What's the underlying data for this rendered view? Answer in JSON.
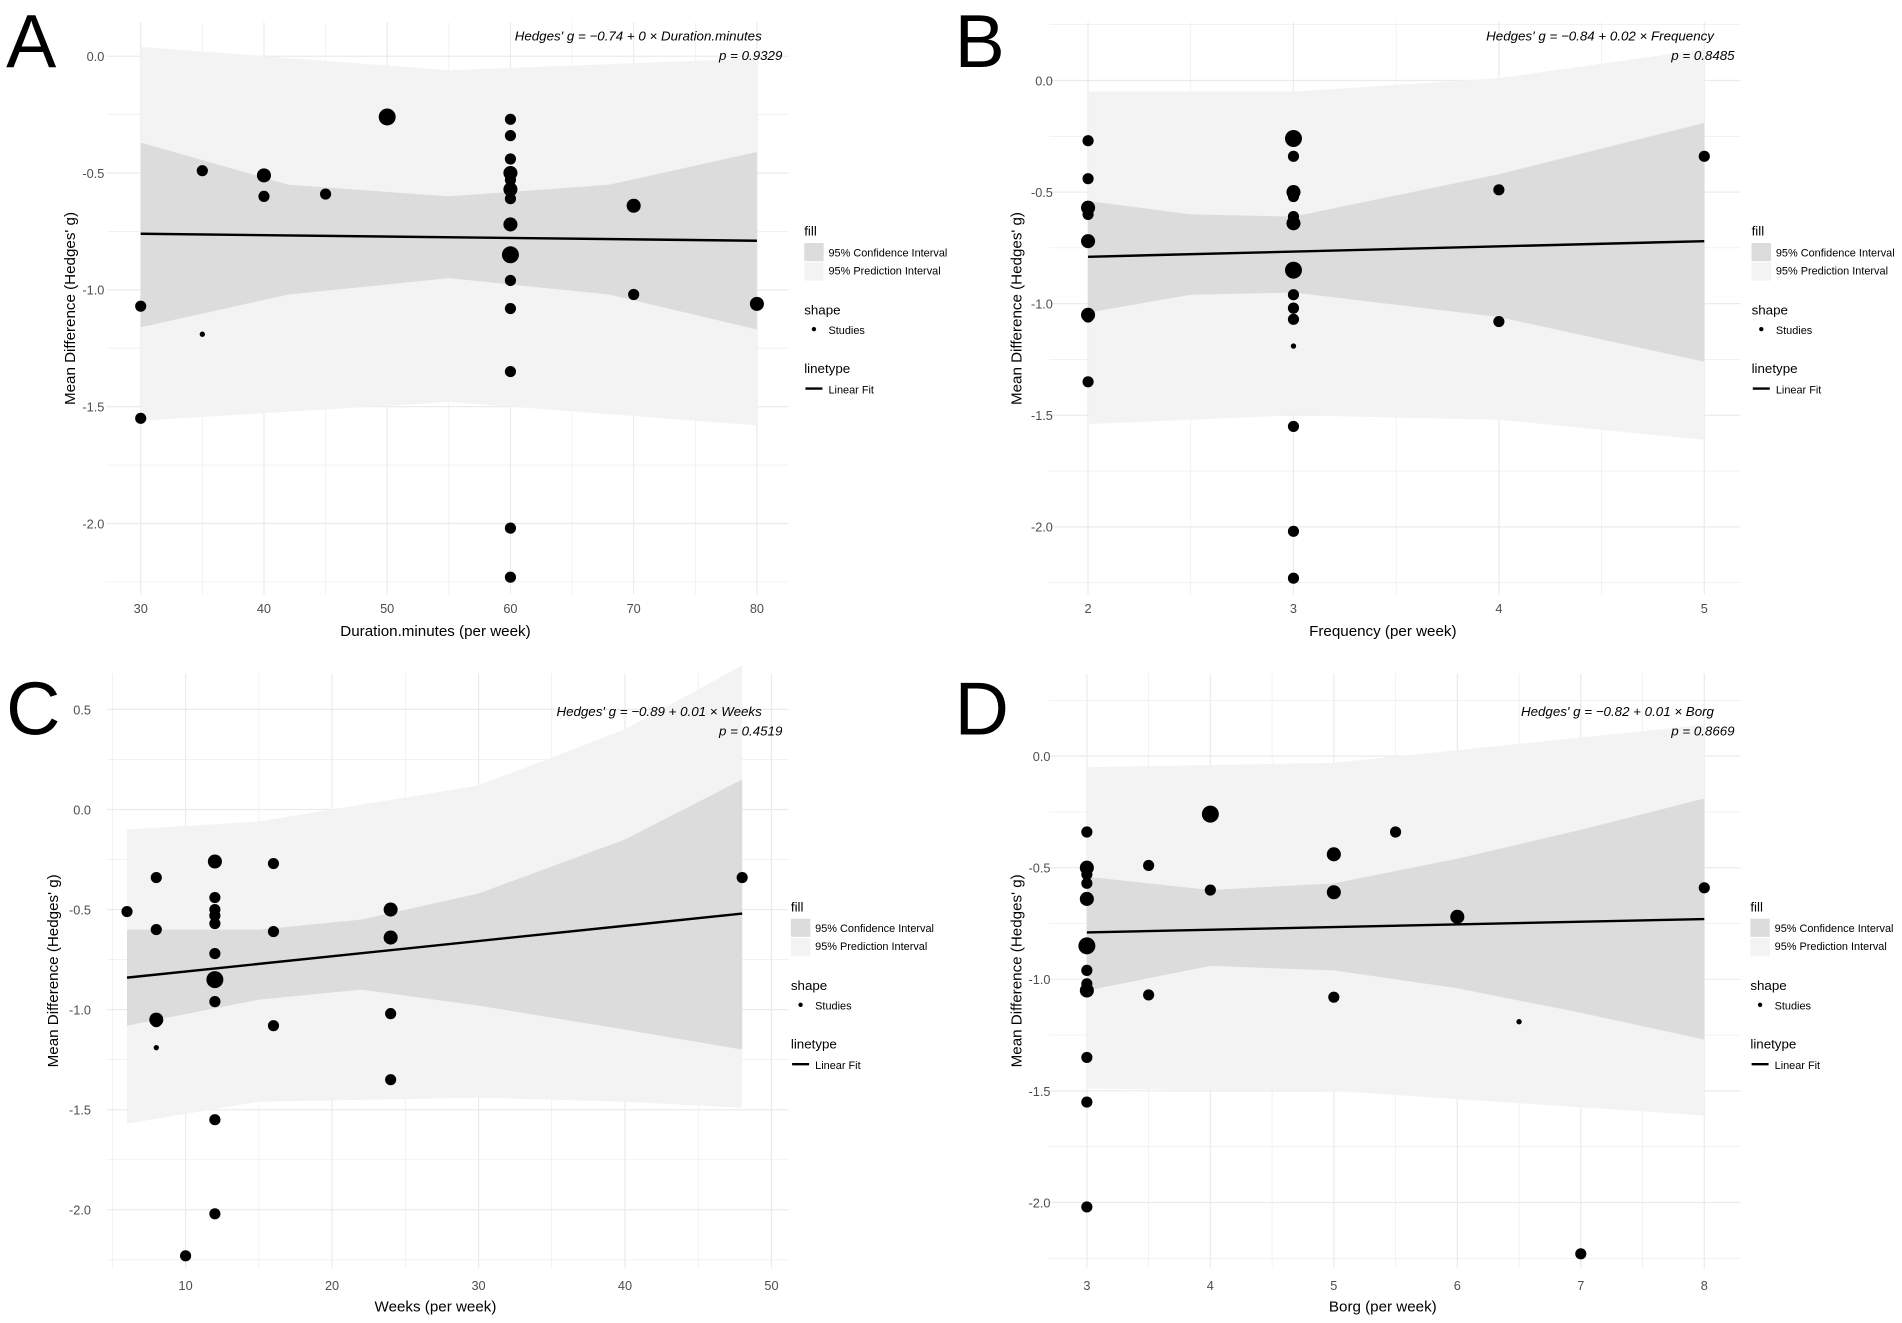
{
  "chart_data": [
    {
      "panel": "A",
      "type": "scatter",
      "equation": "Hedges' g = −0.74 + 0 × Duration.minutes",
      "p_value": "p = 0.9329",
      "xlabel": "Duration.minutes (per week)",
      "ylabel": "Mean Difference (Hedges' g)",
      "xticks": [
        30,
        40,
        50,
        60,
        70,
        80
      ],
      "yticks": [
        0.0,
        -0.5,
        -1.0,
        -1.5,
        -2.0
      ],
      "xtick_labels": [
        "30",
        "40",
        "50",
        "60",
        "70",
        "80"
      ],
      "ytick_labels": [
        "0.0",
        "-0.5",
        "-1.0",
        "-1.5",
        "-2.0"
      ],
      "fit": {
        "x": [
          30,
          80
        ],
        "y": [
          -0.76,
          -0.79
        ]
      },
      "ci": {
        "x": [
          30,
          42,
          55,
          68,
          80
        ],
        "upper": [
          -0.37,
          -0.55,
          -0.6,
          -0.55,
          -0.41
        ],
        "lower": [
          -1.16,
          -1.02,
          -0.95,
          -1.02,
          -1.17
        ]
      },
      "pi": {
        "x": [
          30,
          55,
          80
        ],
        "upper": [
          0.04,
          -0.06,
          -0.01
        ],
        "lower": [
          -1.56,
          -1.48,
          -1.58
        ]
      },
      "points": [
        [
          30,
          -1.07,
          2
        ],
        [
          30,
          -1.55,
          2
        ],
        [
          35,
          -0.49,
          2
        ],
        [
          35,
          -1.19,
          1
        ],
        [
          40,
          -0.51,
          3
        ],
        [
          40,
          -0.6,
          2
        ],
        [
          45,
          -0.59,
          2
        ],
        [
          50,
          -0.26,
          4
        ],
        [
          60,
          -0.27,
          2
        ],
        [
          60,
          -0.34,
          2
        ],
        [
          60,
          -0.44,
          2
        ],
        [
          60,
          -0.5,
          3
        ],
        [
          60,
          -0.53,
          2
        ],
        [
          60,
          -0.57,
          3
        ],
        [
          60,
          -0.61,
          2
        ],
        [
          60,
          -0.72,
          3
        ],
        [
          60,
          -0.85,
          4
        ],
        [
          60,
          -0.96,
          2
        ],
        [
          60,
          -1.08,
          2
        ],
        [
          60,
          -1.35,
          2
        ],
        [
          60,
          -2.02,
          2
        ],
        [
          60,
          -2.23,
          2
        ],
        [
          70,
          -0.64,
          3
        ],
        [
          70,
          -1.02,
          2
        ],
        [
          80,
          -1.06,
          3
        ]
      ]
    },
    {
      "panel": "B",
      "type": "scatter",
      "equation": "Hedges' g = −0.84 + 0.02 × Frequency",
      "p_value": "p = 0.8485",
      "xlabel": "Frequency (per week)",
      "ylabel": "Mean Difference (Hedges' g)",
      "xticks": [
        2,
        3,
        4,
        5
      ],
      "yticks": [
        0.0,
        -0.5,
        -1.0,
        -1.5,
        -2.0
      ],
      "xtick_labels": [
        "2",
        "3",
        "4",
        "5"
      ],
      "ytick_labels": [
        "0.0",
        "-0.5",
        "-1.0",
        "-1.5",
        "-2.0"
      ],
      "fit": {
        "x": [
          2,
          5
        ],
        "y": [
          -0.79,
          -0.72
        ]
      },
      "ci": {
        "x": [
          2,
          2.5,
          3,
          4,
          5
        ],
        "upper": [
          -0.54,
          -0.6,
          -0.61,
          -0.42,
          -0.19
        ],
        "lower": [
          -1.04,
          -0.96,
          -0.95,
          -1.06,
          -1.26
        ]
      },
      "pi": {
        "x": [
          2,
          3,
          4,
          5
        ],
        "upper": [
          -0.05,
          -0.05,
          0.01,
          0.14
        ],
        "lower": [
          -1.54,
          -1.5,
          -1.52,
          -1.61
        ]
      },
      "points": [
        [
          2,
          -0.27,
          2
        ],
        [
          2,
          -0.44,
          2
        ],
        [
          2,
          -0.57,
          3
        ],
        [
          2,
          -0.6,
          2
        ],
        [
          2,
          -0.72,
          3
        ],
        [
          2,
          -1.05,
          3
        ],
        [
          2,
          -1.06,
          2
        ],
        [
          2,
          -1.35,
          2
        ],
        [
          3,
          -0.26,
          4
        ],
        [
          3,
          -0.34,
          2
        ],
        [
          3,
          -0.5,
          3
        ],
        [
          3,
          -0.52,
          2
        ],
        [
          3,
          -0.61,
          2
        ],
        [
          3,
          -0.64,
          3
        ],
        [
          3,
          -0.85,
          4
        ],
        [
          3,
          -0.96,
          2
        ],
        [
          3,
          -1.02,
          2
        ],
        [
          3,
          -1.07,
          2
        ],
        [
          3,
          -1.19,
          1
        ],
        [
          3,
          -1.55,
          2
        ],
        [
          3,
          -2.02,
          2
        ],
        [
          3,
          -2.23,
          2
        ],
        [
          4,
          -0.49,
          2
        ],
        [
          4,
          -1.08,
          2
        ],
        [
          5,
          -0.34,
          2
        ]
      ]
    },
    {
      "panel": "C",
      "type": "scatter",
      "equation": "Hedges' g = −0.89 + 0.01 × Weeks",
      "p_value": "p = 0.4519",
      "xlabel": "Weeks (per week)",
      "ylabel": "Mean Difference (Hedges' g)",
      "xticks": [
        10,
        20,
        30,
        40,
        50
      ],
      "yticks": [
        0.5,
        0.0,
        -0.5,
        -1.0,
        -1.5,
        -2.0
      ],
      "xtick_labels": [
        "10",
        "20",
        "30",
        "40",
        "50"
      ],
      "ytick_labels": [
        "0.5",
        "0.0",
        "-0.5",
        "-1.0",
        "-1.5",
        "-2.0"
      ],
      "fit": {
        "x": [
          6,
          48
        ],
        "y": [
          -0.84,
          -0.52
        ]
      },
      "ci": {
        "x": [
          6,
          15,
          22,
          30,
          40,
          48
        ],
        "upper": [
          -0.6,
          -0.6,
          -0.55,
          -0.42,
          -0.15,
          0.15
        ],
        "lower": [
          -1.08,
          -0.95,
          -0.9,
          -0.98,
          -1.1,
          -1.2
        ]
      },
      "pi": {
        "x": [
          6,
          15,
          30,
          40,
          48
        ],
        "upper": [
          -0.1,
          -0.06,
          0.12,
          0.4,
          0.72
        ],
        "lower": [
          -1.57,
          -1.46,
          -1.44,
          -1.46,
          -1.49
        ]
      },
      "points": [
        [
          6,
          -0.51,
          2
        ],
        [
          8,
          -0.34,
          2
        ],
        [
          8,
          -0.6,
          2
        ],
        [
          8,
          -1.05,
          3
        ],
        [
          8,
          -1.06,
          2
        ],
        [
          8,
          -1.19,
          1
        ],
        [
          10,
          -2.23,
          2
        ],
        [
          12,
          -0.26,
          3
        ],
        [
          12,
          -0.44,
          2
        ],
        [
          12,
          -0.5,
          2
        ],
        [
          12,
          -0.53,
          2
        ],
        [
          12,
          -0.57,
          2
        ],
        [
          12,
          -0.72,
          2
        ],
        [
          12,
          -0.85,
          4
        ],
        [
          12,
          -0.96,
          2
        ],
        [
          12,
          -1.55,
          2
        ],
        [
          12,
          -2.02,
          2
        ],
        [
          16,
          -0.27,
          2
        ],
        [
          16,
          -0.61,
          2
        ],
        [
          16,
          -1.08,
          2
        ],
        [
          24,
          -0.5,
          3
        ],
        [
          24,
          -0.64,
          3
        ],
        [
          24,
          -1.02,
          2
        ],
        [
          24,
          -1.35,
          2
        ],
        [
          48,
          -0.34,
          2
        ]
      ]
    },
    {
      "panel": "D",
      "type": "scatter",
      "equation": "Hedges' g = −0.82 + 0.01 × Borg",
      "p_value": "p = 0.8669",
      "xlabel": "Borg (per week)",
      "ylabel": "Mean Difference (Hedges' g)",
      "xticks": [
        3,
        4,
        5,
        6,
        7,
        8
      ],
      "yticks": [
        0.0,
        -0.5,
        -1.0,
        -1.5,
        -2.0
      ],
      "xtick_labels": [
        "3",
        "4",
        "5",
        "6",
        "7",
        "8"
      ],
      "ytick_labels": [
        "0.0",
        "-0.5",
        "-1.0",
        "-1.5",
        "-2.0"
      ],
      "fit": {
        "x": [
          3,
          8
        ],
        "y": [
          -0.79,
          -0.73
        ]
      },
      "ci": {
        "x": [
          3,
          4,
          5,
          6,
          7,
          8
        ],
        "upper": [
          -0.54,
          -0.6,
          -0.57,
          -0.46,
          -0.33,
          -0.19
        ],
        "lower": [
          -1.05,
          -0.94,
          -0.96,
          -1.04,
          -1.15,
          -1.27
        ]
      },
      "pi": {
        "x": [
          3,
          5,
          8
        ],
        "upper": [
          -0.05,
          -0.03,
          0.14
        ],
        "lower": [
          -1.49,
          -1.5,
          -1.61
        ]
      },
      "points": [
        [
          3,
          -0.34,
          2
        ],
        [
          3,
          -0.5,
          3
        ],
        [
          3,
          -0.53,
          2
        ],
        [
          3,
          -0.57,
          2
        ],
        [
          3,
          -0.64,
          3
        ],
        [
          3,
          -0.85,
          4
        ],
        [
          3,
          -0.96,
          2
        ],
        [
          3,
          -1.02,
          2
        ],
        [
          3,
          -1.05,
          3
        ],
        [
          3,
          -1.35,
          2
        ],
        [
          3,
          -1.55,
          2
        ],
        [
          3,
          -2.02,
          2
        ],
        [
          3.5,
          -0.49,
          2
        ],
        [
          3.5,
          -1.07,
          2
        ],
        [
          4,
          -0.26,
          4
        ],
        [
          4,
          -0.6,
          2
        ],
        [
          5,
          -0.44,
          3
        ],
        [
          5,
          -0.61,
          3
        ],
        [
          5,
          -1.08,
          2
        ],
        [
          5.5,
          -0.34,
          2
        ],
        [
          6,
          -0.72,
          3
        ],
        [
          6.5,
          -1.19,
          1
        ],
        [
          7,
          -2.23,
          2
        ],
        [
          8,
          -0.59,
          2
        ]
      ]
    }
  ],
  "legend": {
    "fill_title": "fill",
    "ci_label": "95% Confidence Interval",
    "pi_label": "95% Prediction Interval",
    "shape_title": "shape",
    "shape_label": "Studies",
    "linetype_title": "linetype",
    "linetype_label": "Linear Fit"
  },
  "colors": {
    "ci": "#dcdcdc",
    "pi": "#f3f3f3",
    "grid": "#ebebeb",
    "points": "#000000"
  }
}
